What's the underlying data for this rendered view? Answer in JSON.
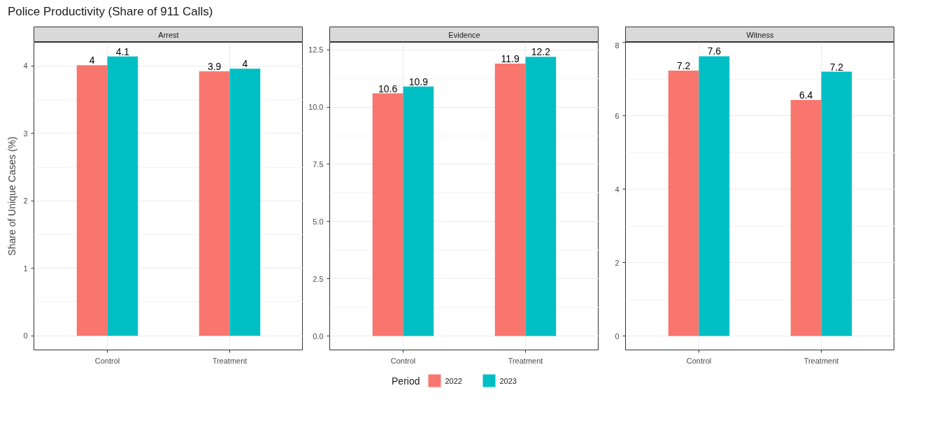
{
  "chart_data": [
    {
      "type": "bar",
      "title": "Police Productivity (Share of 911 Calls)",
      "subtitle": "Arrest",
      "ylabel": "Share of Unique Cases (%)",
      "categories": [
        "Control",
        "Treatment"
      ],
      "series": [
        {
          "color": "#f8766d",
          "values": [
            4.01,
            3.92
          ],
          "value_labels": [
            "4",
            "3.9"
          ]
        },
        {
          "color": "#00bfc4",
          "values": [
            4.14,
            3.96
          ],
          "value_labels": [
            "4.1",
            "4"
          ]
        }
      ],
      "ylim": [
        -0.21,
        4.35
      ],
      "yticks": [
        0,
        1,
        2,
        3,
        4
      ],
      "grid": true
    },
    {
      "type": "bar",
      "subtitle": "Evidence",
      "categories": [
        "Control",
        "Treatment"
      ],
      "legend_title": "Period",
      "legend": "bottom",
      "series": [
        {
          "name": "2022",
          "color": "#f8766d",
          "values": [
            10.6,
            11.9
          ],
          "value_labels": [
            "10.6",
            "11.9"
          ]
        },
        {
          "name": "2023",
          "color": "#00bfc4",
          "values": [
            10.9,
            12.2
          ],
          "value_labels": [
            "10.9",
            "12.2"
          ]
        }
      ],
      "ylim": [
        -0.61,
        12.83
      ],
      "yticks": [
        {
          "value": 0,
          "label": "0.0"
        },
        2.5,
        {
          "value": 5,
          "label": "5.0"
        },
        7.5,
        {
          "value": 10,
          "label": "10.0"
        },
        12.5
      ],
      "grid": true
    },
    {
      "type": "bar",
      "subtitle": "Witness",
      "categories": [
        "Control",
        "Treatment"
      ],
      "series": [
        {
          "color": "#f8766d",
          "values": [
            7.23,
            6.43
          ],
          "value_labels": [
            "7.2",
            "6.4"
          ]
        },
        {
          "color": "#00bfc4",
          "values": [
            7.62,
            7.2
          ],
          "value_labels": [
            "7.6",
            "7.2"
          ]
        }
      ],
      "ylim": [
        -0.38,
        8.0
      ],
      "yticks": [
        0,
        2,
        4,
        6,
        8
      ],
      "grid": true
    }
  ]
}
